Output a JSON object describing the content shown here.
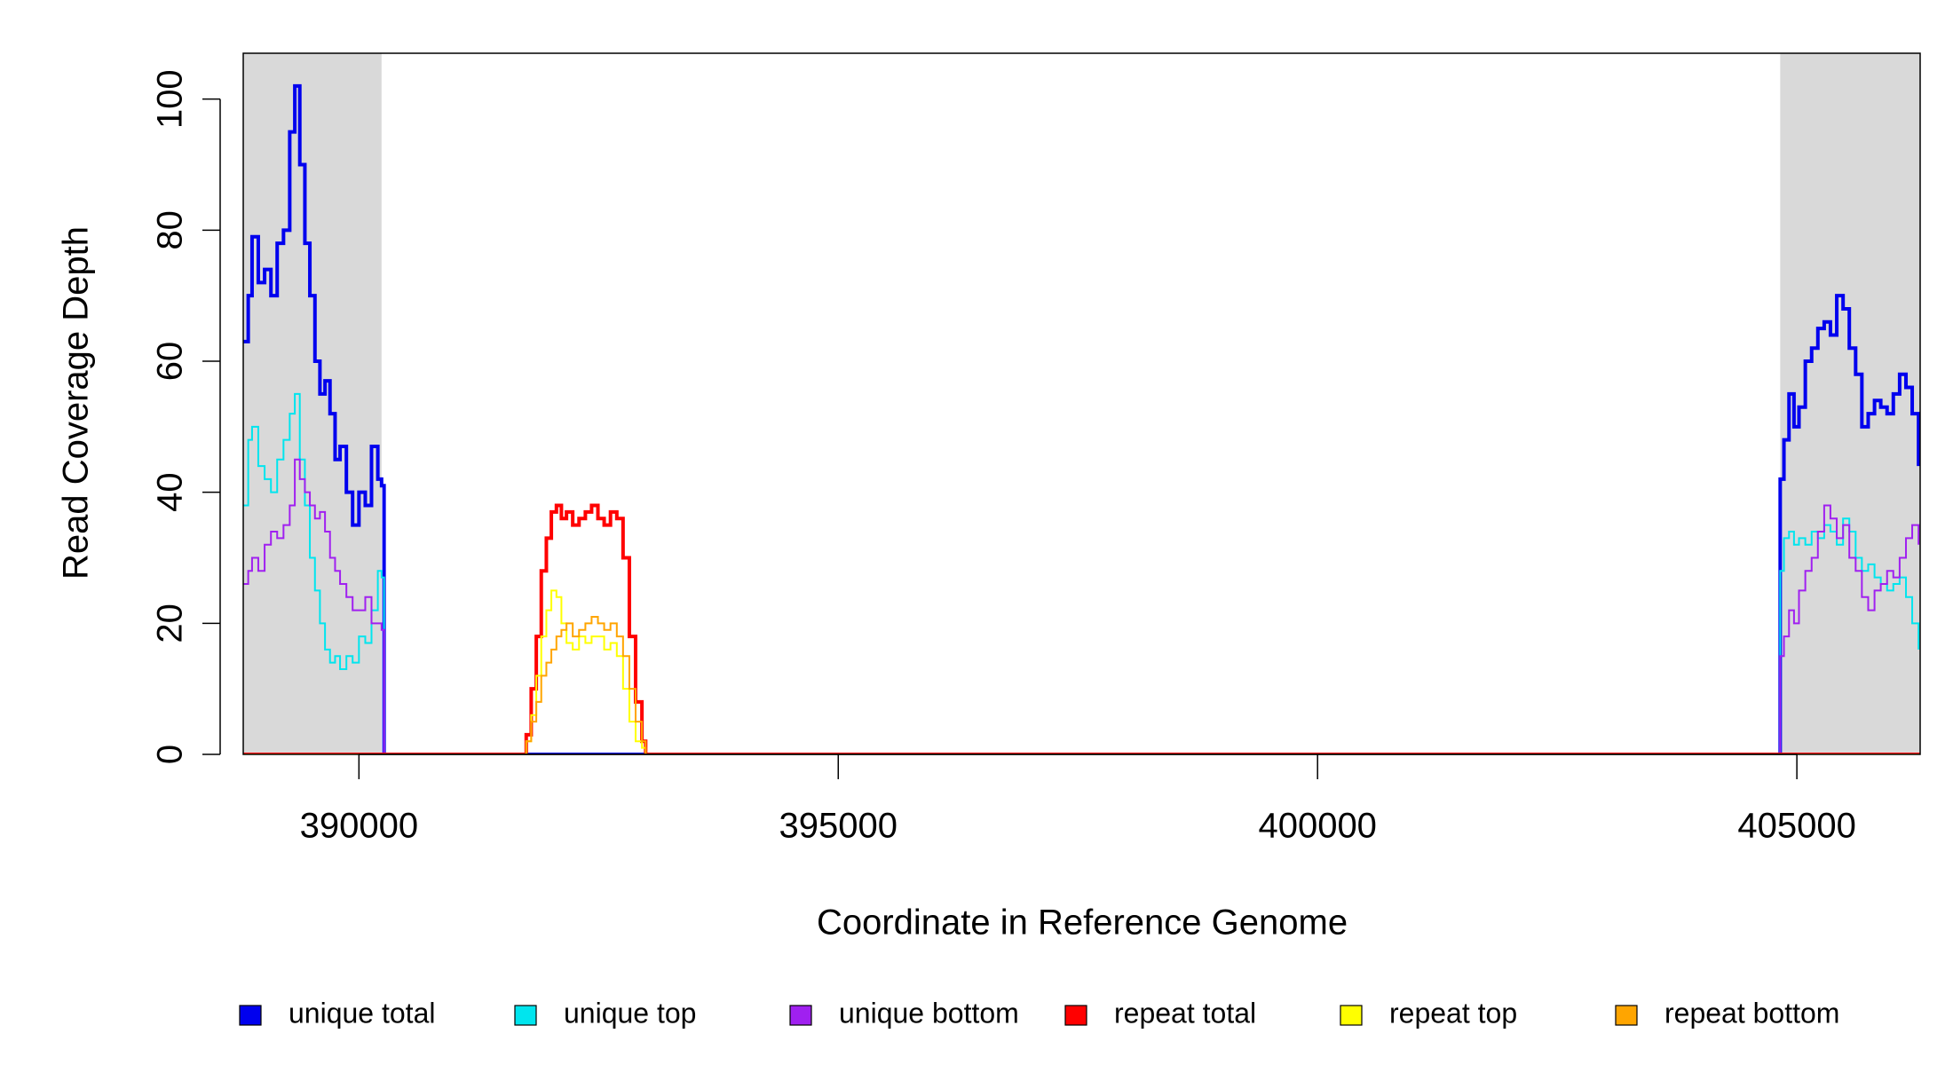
{
  "chart_data": {
    "type": "step",
    "xlabel": "Coordinate in Reference Genome",
    "ylabel": "Read Coverage Depth",
    "xlim": [
      388793,
      406286
    ],
    "ylim": [
      0,
      107
    ],
    "xticks": [
      390000,
      395000,
      400000,
      405000
    ],
    "yticks": [
      0,
      20,
      40,
      60,
      80,
      100
    ],
    "shaded_regions": [
      [
        388793,
        390236
      ],
      [
        404826,
        406286
      ]
    ],
    "shade_color": "#d9d9d9",
    "legend": "bottom",
    "series": [
      {
        "name": "unique total",
        "color": "#0000ee",
        "line_width": 2,
        "x": [
          388793,
          388845,
          388885,
          388950,
          389016,
          389082,
          389147,
          389213,
          389278,
          389331,
          389383,
          389436,
          389488,
          389541,
          389593,
          389646,
          389698,
          389751,
          389803,
          389869,
          389934,
          390000,
          390066,
          390131,
          390197,
          390236,
          390262,
          404813,
          404826,
          404865,
          404918,
          404970,
          405022,
          405088,
          405154,
          405219,
          405285,
          405350,
          405416,
          405482,
          405547,
          405613,
          405678,
          405744,
          405810,
          405875,
          405941,
          406006,
          406072,
          406138,
          406203,
          406269
        ],
        "values": [
          63,
          70,
          79,
          72,
          74,
          70,
          78,
          80,
          95,
          102,
          90,
          78,
          70,
          60,
          55,
          57,
          52,
          45,
          47,
          40,
          35,
          40,
          38,
          47,
          42,
          41,
          0,
          0,
          42,
          48,
          55,
          50,
          53,
          60,
          62,
          65,
          66,
          64,
          70,
          68,
          62,
          58,
          50,
          52,
          54,
          53,
          52,
          55,
          58,
          56,
          52,
          44
        ]
      },
      {
        "name": "unique top",
        "color": "#00e5ee",
        "line_width": 1,
        "x": [
          388793,
          388845,
          388885,
          388950,
          389016,
          389082,
          389147,
          389213,
          389278,
          389331,
          389383,
          389436,
          389488,
          389541,
          389593,
          389646,
          389698,
          389751,
          389803,
          389869,
          389934,
          390000,
          390066,
          390131,
          390197,
          390236,
          390262,
          404813,
          404826,
          404865,
          404918,
          404970,
          405022,
          405088,
          405154,
          405219,
          405285,
          405350,
          405416,
          405482,
          405547,
          405613,
          405678,
          405744,
          405810,
          405875,
          405941,
          406006,
          406072,
          406138,
          406203,
          406269
        ],
        "values": [
          38,
          48,
          50,
          44,
          42,
          40,
          45,
          48,
          52,
          55,
          45,
          38,
          30,
          25,
          20,
          16,
          14,
          15,
          13,
          15,
          14,
          18,
          17,
          22,
          28,
          27,
          0,
          0,
          28,
          33,
          34,
          32,
          33,
          32,
          34,
          33,
          35,
          34,
          32,
          36,
          34,
          30,
          28,
          29,
          27,
          26,
          25,
          26,
          27,
          24,
          20,
          16
        ]
      },
      {
        "name": "unique bottom",
        "color": "#a020f0",
        "line_width": 1,
        "x": [
          388793,
          388845,
          388885,
          388950,
          389016,
          389082,
          389147,
          389213,
          389278,
          389331,
          389383,
          389436,
          389488,
          389541,
          389593,
          389646,
          389698,
          389751,
          389803,
          389869,
          389934,
          390000,
          390066,
          390131,
          390197,
          390236,
          390262,
          404813,
          404826,
          404865,
          404918,
          404970,
          405022,
          405088,
          405154,
          405219,
          405285,
          405350,
          405416,
          405482,
          405547,
          405613,
          405678,
          405744,
          405810,
          405875,
          405941,
          406006,
          406072,
          406138,
          406203,
          406269
        ],
        "values": [
          26,
          28,
          30,
          28,
          32,
          34,
          33,
          35,
          38,
          45,
          42,
          40,
          38,
          36,
          37,
          34,
          30,
          28,
          26,
          24,
          22,
          22,
          24,
          20,
          20,
          19,
          0,
          0,
          15,
          18,
          22,
          20,
          25,
          28,
          30,
          34,
          38,
          36,
          33,
          35,
          30,
          28,
          24,
          22,
          25,
          26,
          28,
          27,
          30,
          33,
          35,
          32
        ]
      },
      {
        "name": "repeat total",
        "color": "#ff0000",
        "line_width": 2,
        "x": [
          388793,
          391706,
          391745,
          391797,
          391850,
          391902,
          391955,
          392007,
          392060,
          392112,
          392165,
          392230,
          392296,
          392362,
          392427,
          392493,
          392558,
          392624,
          392690,
          392755,
          392821,
          392886,
          392952,
          392991,
          406286
        ],
        "values": [
          0,
          0,
          3,
          10,
          18,
          28,
          33,
          37,
          38,
          36,
          37,
          35,
          36,
          37,
          38,
          36,
          35,
          37,
          36,
          30,
          18,
          8,
          2,
          0,
          0
        ]
      },
      {
        "name": "repeat top",
        "color": "#ffff00",
        "line_width": 1,
        "x": [
          388793,
          391706,
          391745,
          391797,
          391850,
          391902,
          391955,
          392007,
          392060,
          392112,
          392165,
          392230,
          392296,
          392362,
          392427,
          392493,
          392558,
          392624,
          392690,
          392755,
          392821,
          392886,
          392952,
          392991,
          406286
        ],
        "values": [
          0,
          0,
          2,
          6,
          12,
          18,
          22,
          25,
          24,
          20,
          17,
          16,
          18,
          17,
          18,
          18,
          16,
          17,
          15,
          10,
          5,
          2,
          1,
          0,
          0
        ]
      },
      {
        "name": "repeat bottom",
        "color": "#ffa500",
        "line_width": 1,
        "x": [
          388793,
          391706,
          391745,
          391797,
          391850,
          391902,
          391955,
          392007,
          392060,
          392112,
          392165,
          392230,
          392296,
          392362,
          392427,
          392493,
          392558,
          392624,
          392690,
          392755,
          392821,
          392886,
          392952,
          392991,
          406286
        ],
        "values": [
          0,
          0,
          2,
          5,
          8,
          12,
          14,
          16,
          18,
          19,
          20,
          18,
          19,
          20,
          21,
          20,
          19,
          20,
          18,
          15,
          10,
          5,
          2,
          0,
          0
        ]
      }
    ]
  }
}
